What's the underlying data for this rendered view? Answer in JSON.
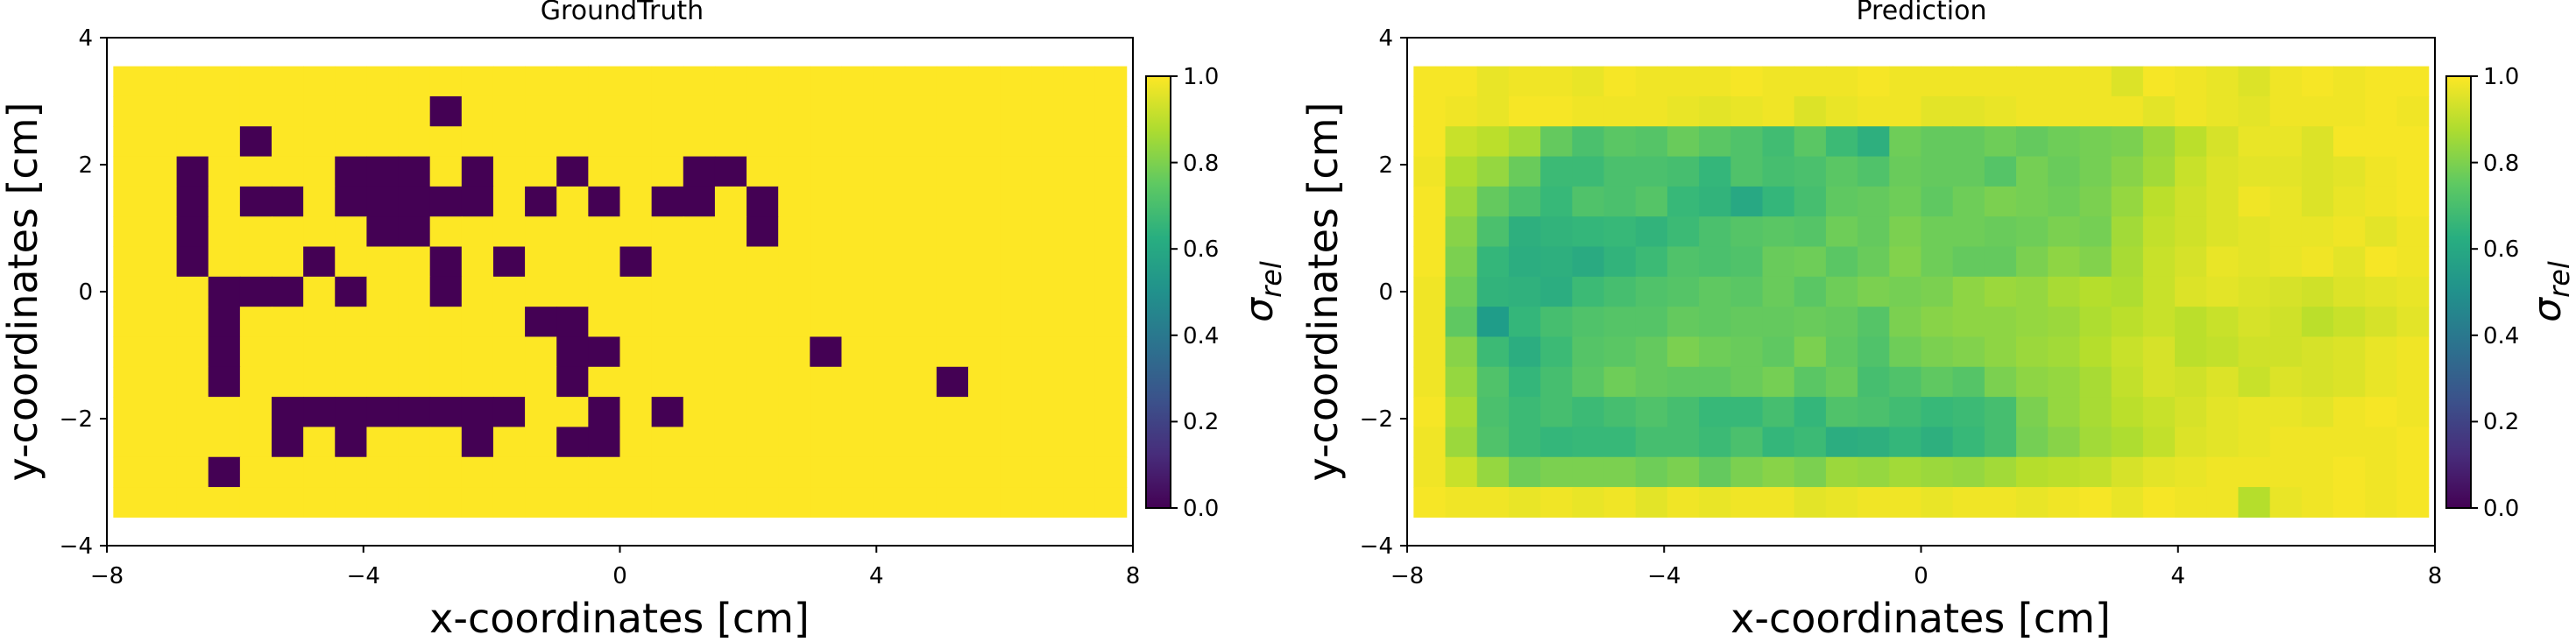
{
  "figure": {
    "cbar_ticks": [
      "1.0",
      "0.8",
      "0.6",
      "0.4",
      "0.2",
      "0.0"
    ]
  },
  "chart_data": [
    {
      "type": "heatmap",
      "title": "GroundTruth",
      "xlabel": "x-coordinates [cm]",
      "ylabel": "y-coordinates [cm]",
      "xlim": [
        -8,
        8
      ],
      "ylim": [
        -4,
        4
      ],
      "xticks": [
        "−8",
        "−4",
        "0",
        "4",
        "8"
      ],
      "yticks": [
        "4",
        "2",
        "0",
        "−2",
        "−4"
      ],
      "extent": [
        -7.9,
        7.9,
        -3.55,
        3.55
      ],
      "grid": [
        32,
        15
      ],
      "value_range": [
        0,
        1
      ],
      "colormap": "viridis",
      "colorbar_label": "σ_rel",
      "description": "binary conductivity map: background value 1.0, inclusion cells value 0.0",
      "inclusion_cells_at_0": [
        [
          10,
          1
        ],
        [
          4,
          2
        ],
        [
          2,
          3
        ],
        [
          7,
          3
        ],
        [
          8,
          3
        ],
        [
          9,
          3
        ],
        [
          11,
          3
        ],
        [
          14,
          3
        ],
        [
          18,
          3
        ],
        [
          19,
          3
        ],
        [
          2,
          4
        ],
        [
          4,
          4
        ],
        [
          5,
          4
        ],
        [
          7,
          4
        ],
        [
          8,
          4
        ],
        [
          9,
          4
        ],
        [
          10,
          4
        ],
        [
          11,
          4
        ],
        [
          13,
          4
        ],
        [
          15,
          4
        ],
        [
          17,
          4
        ],
        [
          18,
          4
        ],
        [
          20,
          4
        ],
        [
          2,
          5
        ],
        [
          8,
          5
        ],
        [
          9,
          5
        ],
        [
          20,
          5
        ],
        [
          2,
          6
        ],
        [
          6,
          6
        ],
        [
          10,
          6
        ],
        [
          12,
          6
        ],
        [
          16,
          6
        ],
        [
          3,
          7
        ],
        [
          4,
          7
        ],
        [
          5,
          7
        ],
        [
          7,
          7
        ],
        [
          10,
          7
        ],
        [
          3,
          8
        ],
        [
          13,
          8
        ],
        [
          14,
          8
        ],
        [
          3,
          9
        ],
        [
          14,
          9
        ],
        [
          15,
          9
        ],
        [
          22,
          9
        ],
        [
          3,
          10
        ],
        [
          14,
          10
        ],
        [
          26,
          10
        ],
        [
          5,
          11
        ],
        [
          6,
          11
        ],
        [
          7,
          11
        ],
        [
          8,
          11
        ],
        [
          9,
          11
        ],
        [
          10,
          11
        ],
        [
          11,
          11
        ],
        [
          12,
          11
        ],
        [
          15,
          11
        ],
        [
          17,
          11
        ],
        [
          5,
          12
        ],
        [
          7,
          12
        ],
        [
          11,
          12
        ],
        [
          14,
          12
        ],
        [
          15,
          12
        ],
        [
          3,
          13
        ]
      ]
    },
    {
      "type": "heatmap",
      "title": "Prediction",
      "xlabel": "x-coordinates [cm]",
      "ylabel": "y-coordinates [cm]",
      "xlim": [
        -8,
        8
      ],
      "ylim": [
        -4,
        4
      ],
      "xticks": [
        "−8",
        "−4",
        "0",
        "4",
        "8"
      ],
      "yticks": [
        "4",
        "2",
        "0",
        "−2",
        "−4"
      ],
      "extent": [
        -7.9,
        7.9,
        -3.55,
        3.55
      ],
      "grid": [
        32,
        15
      ],
      "value_range": [
        0,
        1
      ],
      "colormap": "viridis",
      "colorbar_label": "σ_rel",
      "rows": [
        [
          0.99,
          0.99,
          0.97,
          0.98,
          0.98,
          0.97,
          0.99,
          0.98,
          0.98,
          0.98,
          0.99,
          0.98,
          0.98,
          0.98,
          0.99,
          0.98,
          0.98,
          0.98,
          0.98,
          0.98,
          0.98,
          0.98,
          0.95,
          0.99,
          0.98,
          0.97,
          0.95,
          0.98,
          0.99,
          0.98,
          0.99,
          0.99
        ],
        [
          0.99,
          0.98,
          0.97,
          0.99,
          0.99,
          0.98,
          0.98,
          0.98,
          0.97,
          0.96,
          0.97,
          0.98,
          0.95,
          0.97,
          0.98,
          0.98,
          0.96,
          0.96,
          0.97,
          0.98,
          0.98,
          0.98,
          0.98,
          0.96,
          0.98,
          0.97,
          0.96,
          0.98,
          0.98,
          0.98,
          0.99,
          0.98
        ],
        [
          0.99,
          0.92,
          0.9,
          0.86,
          0.76,
          0.71,
          0.74,
          0.73,
          0.77,
          0.74,
          0.72,
          0.69,
          0.74,
          0.68,
          0.63,
          0.78,
          0.76,
          0.76,
          0.78,
          0.76,
          0.78,
          0.79,
          0.8,
          0.85,
          0.9,
          0.94,
          0.97,
          0.97,
          0.95,
          0.99,
          0.99,
          0.99
        ],
        [
          0.98,
          0.88,
          0.84,
          0.77,
          0.68,
          0.68,
          0.71,
          0.71,
          0.7,
          0.66,
          0.72,
          0.7,
          0.71,
          0.74,
          0.72,
          0.77,
          0.76,
          0.76,
          0.73,
          0.79,
          0.77,
          0.79,
          0.82,
          0.86,
          0.92,
          0.95,
          0.96,
          0.96,
          0.95,
          0.96,
          0.98,
          0.99
        ],
        [
          0.99,
          0.85,
          0.76,
          0.71,
          0.67,
          0.72,
          0.71,
          0.73,
          0.67,
          0.65,
          0.6,
          0.66,
          0.7,
          0.75,
          0.76,
          0.78,
          0.75,
          0.78,
          0.8,
          0.79,
          0.78,
          0.8,
          0.84,
          0.9,
          0.93,
          0.95,
          0.98,
          0.97,
          0.95,
          0.97,
          0.98,
          0.99
        ],
        [
          0.99,
          0.82,
          0.71,
          0.63,
          0.65,
          0.66,
          0.67,
          0.65,
          0.68,
          0.71,
          0.73,
          0.74,
          0.73,
          0.78,
          0.76,
          0.8,
          0.78,
          0.78,
          0.77,
          0.78,
          0.8,
          0.79,
          0.86,
          0.91,
          0.93,
          0.95,
          0.96,
          0.97,
          0.97,
          0.98,
          0.96,
          0.98
        ],
        [
          0.99,
          0.8,
          0.66,
          0.62,
          0.63,
          0.61,
          0.65,
          0.68,
          0.72,
          0.71,
          0.72,
          0.77,
          0.78,
          0.74,
          0.77,
          0.81,
          0.78,
          0.76,
          0.76,
          0.8,
          0.83,
          0.81,
          0.87,
          0.92,
          0.94,
          0.97,
          0.96,
          0.97,
          0.98,
          0.96,
          0.99,
          0.98
        ],
        [
          0.98,
          0.78,
          0.65,
          0.64,
          0.62,
          0.68,
          0.7,
          0.72,
          0.73,
          0.75,
          0.74,
          0.77,
          0.74,
          0.78,
          0.8,
          0.79,
          0.8,
          0.83,
          0.85,
          0.84,
          0.87,
          0.89,
          0.88,
          0.92,
          0.95,
          0.96,
          0.95,
          0.94,
          0.93,
          0.95,
          0.96,
          0.97
        ],
        [
          0.98,
          0.75,
          0.55,
          0.66,
          0.7,
          0.72,
          0.73,
          0.73,
          0.76,
          0.75,
          0.76,
          0.76,
          0.77,
          0.76,
          0.73,
          0.8,
          0.82,
          0.83,
          0.83,
          0.84,
          0.85,
          0.88,
          0.9,
          0.92,
          0.9,
          0.92,
          0.94,
          0.93,
          0.9,
          0.92,
          0.94,
          0.96
        ],
        [
          0.98,
          0.82,
          0.68,
          0.62,
          0.68,
          0.73,
          0.74,
          0.76,
          0.8,
          0.78,
          0.77,
          0.75,
          0.8,
          0.75,
          0.72,
          0.78,
          0.8,
          0.81,
          0.83,
          0.85,
          0.86,
          0.89,
          0.92,
          0.94,
          0.9,
          0.91,
          0.93,
          0.93,
          0.94,
          0.95,
          0.97,
          0.98
        ],
        [
          0.98,
          0.84,
          0.72,
          0.66,
          0.7,
          0.74,
          0.78,
          0.76,
          0.75,
          0.75,
          0.77,
          0.79,
          0.74,
          0.77,
          0.7,
          0.72,
          0.75,
          0.73,
          0.8,
          0.83,
          0.84,
          0.87,
          0.91,
          0.94,
          0.93,
          0.95,
          0.92,
          0.95,
          0.94,
          0.95,
          0.97,
          0.98
        ],
        [
          0.99,
          0.87,
          0.71,
          0.68,
          0.7,
          0.68,
          0.7,
          0.72,
          0.7,
          0.67,
          0.67,
          0.7,
          0.66,
          0.72,
          0.71,
          0.69,
          0.67,
          0.68,
          0.7,
          0.8,
          0.84,
          0.87,
          0.9,
          0.92,
          0.94,
          0.96,
          0.97,
          0.97,
          0.96,
          0.98,
          0.99,
          0.98
        ],
        [
          0.98,
          0.85,
          0.72,
          0.68,
          0.66,
          0.67,
          0.67,
          0.7,
          0.7,
          0.68,
          0.71,
          0.66,
          0.68,
          0.62,
          0.63,
          0.66,
          0.63,
          0.67,
          0.7,
          0.79,
          0.82,
          0.86,
          0.88,
          0.91,
          0.95,
          0.96,
          0.97,
          0.98,
          0.98,
          0.98,
          0.98,
          0.99
        ],
        [
          0.98,
          0.92,
          0.84,
          0.78,
          0.8,
          0.8,
          0.8,
          0.78,
          0.8,
          0.76,
          0.8,
          0.82,
          0.8,
          0.85,
          0.84,
          0.86,
          0.85,
          0.84,
          0.86,
          0.89,
          0.9,
          0.91,
          0.94,
          0.96,
          0.97,
          0.98,
          0.98,
          0.98,
          0.98,
          0.99,
          0.98,
          0.99
        ],
        [
          0.99,
          0.98,
          0.98,
          0.97,
          0.98,
          0.97,
          0.98,
          0.96,
          0.98,
          0.97,
          0.98,
          0.98,
          0.96,
          0.97,
          0.98,
          0.98,
          0.97,
          0.98,
          0.98,
          0.97,
          0.98,
          0.99,
          0.97,
          0.99,
          0.98,
          0.98,
          0.89,
          0.97,
          0.98,
          0.99,
          0.98,
          0.99
        ]
      ]
    }
  ]
}
